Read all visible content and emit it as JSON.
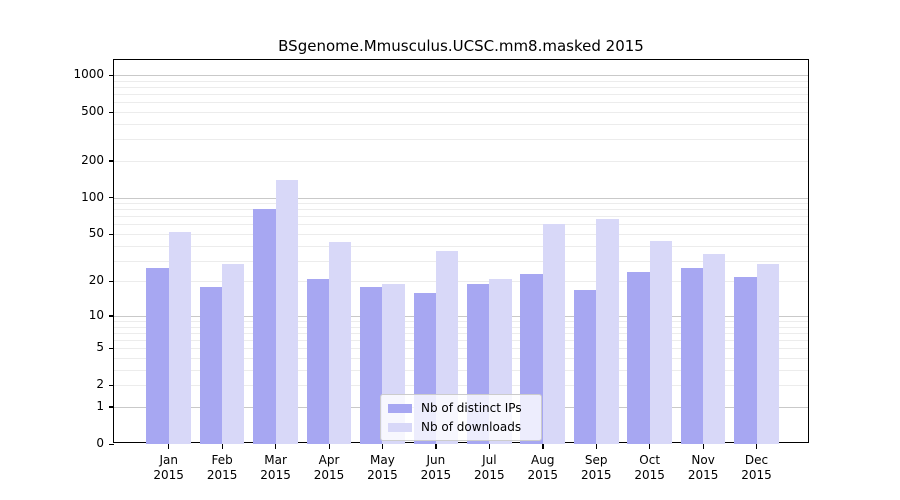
{
  "chart_data": {
    "type": "bar",
    "title": "BSgenome.Mmusculus.UCSC.mm8.masked 2015",
    "categories": [
      "Jan",
      "Feb",
      "Mar",
      "Apr",
      "May",
      "Jun",
      "Jul",
      "Aug",
      "Sep",
      "Oct",
      "Nov",
      "Dec"
    ],
    "category_year": "2015",
    "series": [
      {
        "name": "Nb of distinct IPs",
        "color": "#a7a7f2",
        "values": [
          26,
          18,
          81,
          21,
          18,
          16,
          19,
          23,
          17,
          24,
          26,
          22
        ]
      },
      {
        "name": "Nb of downloads",
        "color": "#d8d8f8",
        "values": [
          52,
          28,
          140,
          43,
          19,
          36,
          21,
          60,
          66,
          44,
          34,
          28
        ]
      }
    ],
    "xlabel": "",
    "ylabel": "",
    "y_scale": "log1p",
    "ylim": [
      0,
      1000
    ],
    "y_ticks": [
      0,
      1,
      2,
      5,
      10,
      20,
      50,
      100,
      200,
      500,
      1000
    ],
    "grid": true,
    "grid_major_values": [
      1,
      10,
      100,
      1000
    ],
    "grid_minor_values": [
      2,
      3,
      4,
      5,
      6,
      7,
      8,
      9,
      20,
      30,
      40,
      50,
      60,
      70,
      80,
      90,
      200,
      300,
      400,
      500,
      600,
      700,
      800,
      900
    ],
    "grid_major_color": "#c9c9c9",
    "grid_minor_color": "#ececec",
    "legend_position": "bottom-center",
    "axis_color": "#000000",
    "background_color": "#ffffff"
  }
}
